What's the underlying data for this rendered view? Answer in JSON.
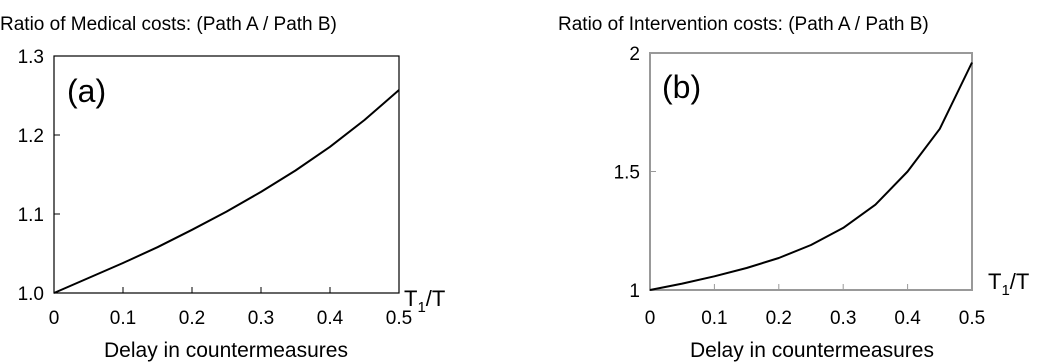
{
  "chart_data": [
    {
      "type": "line",
      "title": "Ratio of Medical costs: (Path A / Path B)",
      "panel_label": "(a)",
      "xlabel": "Delay in countermeasures",
      "x_axis_var": "T",
      "x_axis_sub": "1",
      "x_axis_den": "/T",
      "ylabel": "",
      "xlim": [
        0,
        0.5
      ],
      "ylim": [
        1.0,
        1.3
      ],
      "x_ticks": [
        0,
        0.1,
        0.2,
        0.3,
        0.4,
        0.5
      ],
      "x_tick_labels": [
        "0",
        "0.1",
        "0.2",
        "0.3",
        "0.4",
        "0.5"
      ],
      "y_ticks": [
        1.0,
        1.1,
        1.2,
        1.3
      ],
      "y_tick_labels": [
        "1.0",
        "1.1",
        "1.2",
        "1.3"
      ],
      "frame_color": "#000000",
      "series": [
        {
          "color": "#000000",
          "x": [
            0,
            0.05,
            0.1,
            0.15,
            0.2,
            0.25,
            0.3,
            0.35,
            0.4,
            0.45,
            0.5
          ],
          "y": [
            1.0,
            1.019,
            1.038,
            1.058,
            1.08,
            1.103,
            1.128,
            1.155,
            1.185,
            1.219,
            1.257
          ]
        }
      ]
    },
    {
      "type": "line",
      "title": "Ratio of Intervention costs: (Path A / Path B)",
      "panel_label": "(b)",
      "xlabel": "Delay in countermeasures",
      "x_axis_var": "T",
      "x_axis_sub": "1",
      "x_axis_den": "/T",
      "ylabel": "",
      "xlim": [
        0,
        0.5
      ],
      "ylim": [
        1,
        2
      ],
      "x_ticks": [
        0,
        0.1,
        0.2,
        0.3,
        0.4,
        0.5
      ],
      "x_tick_labels": [
        "0",
        "0.1",
        "0.2",
        "0.3",
        "0.4",
        "0.5"
      ],
      "y_ticks": [
        1,
        1.5,
        2
      ],
      "y_tick_labels": [
        "1",
        "1.5",
        "2"
      ],
      "frame_color": "#999999",
      "series": [
        {
          "color": "#000000",
          "x": [
            0,
            0.05,
            0.1,
            0.15,
            0.2,
            0.25,
            0.3,
            0.35,
            0.4,
            0.45,
            0.5
          ],
          "y": [
            1.0,
            1.027,
            1.058,
            1.093,
            1.135,
            1.19,
            1.262,
            1.36,
            1.5,
            1.68,
            1.96
          ]
        }
      ]
    }
  ]
}
